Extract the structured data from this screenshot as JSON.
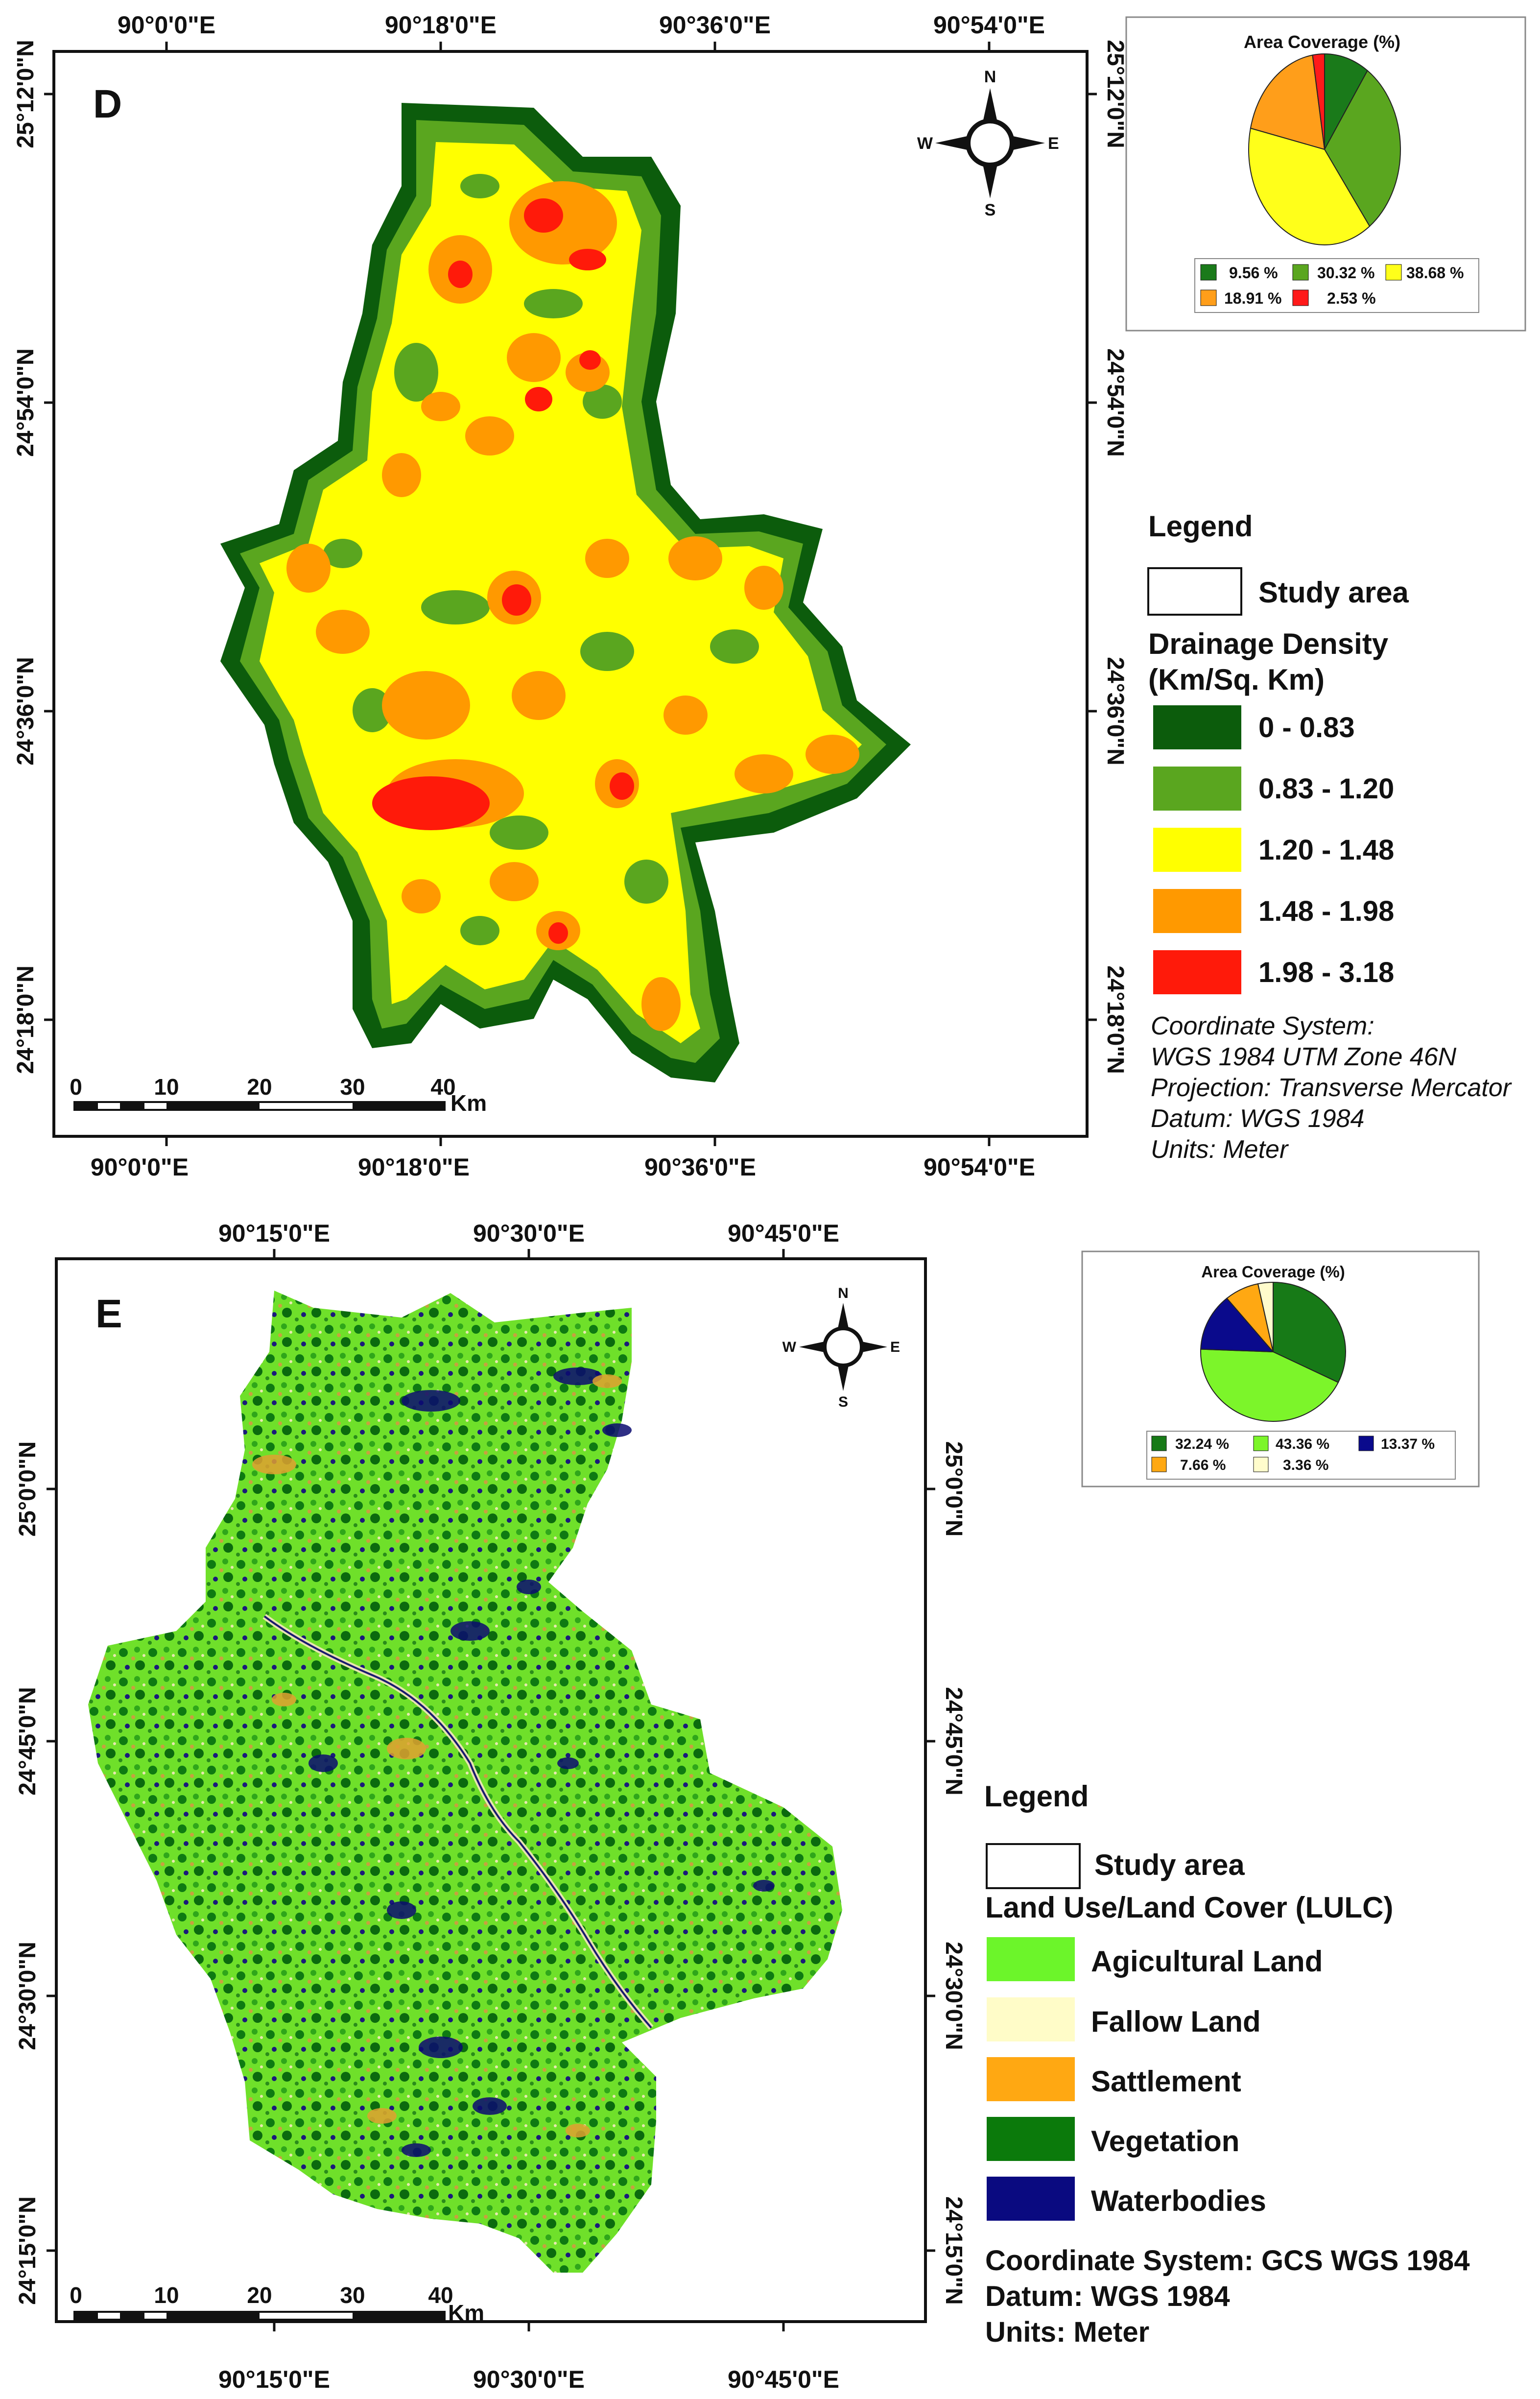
{
  "panel_d": {
    "label": "D",
    "top_ticks": [
      "90°0'0\"E",
      "90°18'0\"E",
      "90°36'0\"E",
      "90°54'0\"E"
    ],
    "bottom_ticks": [
      "90°0'0\"E",
      "90°18'0\"E",
      "90°36'0\"E",
      "90°54'0\"E"
    ],
    "left_ticks": [
      "25°12'0\"N",
      "24°54'0\"N",
      "24°36'0\"N",
      "24°18'0\"N"
    ],
    "right_ticks": [
      "25°12'0\"N",
      "24°54'0\"N",
      "24°36'0\"N",
      "24°18'0\"N"
    ],
    "north_arrow": {
      "n": "N",
      "s": "S",
      "e": "E",
      "w": "W"
    },
    "scale_bar": {
      "labels": [
        "0",
        "10",
        "20",
        "30",
        "40"
      ],
      "unit": "Km"
    },
    "pie": {
      "title": "Area Coverage (%)",
      "slices": [
        {
          "label": "9.56 %",
          "value": 9.56,
          "color": "#1a7a1a"
        },
        {
          "label": "30.32 %",
          "value": 30.32,
          "color": "#5aa61f"
        },
        {
          "label": "38.68 %",
          "value": 38.68,
          "color": "#ffff1a"
        },
        {
          "label": "18.91 %",
          "value": 18.91,
          "color": "#ff9e1a"
        },
        {
          "label": "2.53 %",
          "value": 2.53,
          "color": "#ff1a1a"
        }
      ]
    },
    "legend": {
      "title": "Legend",
      "study_area": "Study area",
      "heading_line1": "Drainage Density",
      "heading_line2": "(Km/Sq. Km)",
      "classes": [
        {
          "label": "0 - 0.83",
          "color": "#0c5c0c"
        },
        {
          "label": "0.83 - 1.20",
          "color": "#5aa61f"
        },
        {
          "label": "1.20 - 1.48",
          "color": "#ffff00"
        },
        {
          "label": "1.48 - 1.98",
          "color": "#ff9900"
        },
        {
          "label": "1.98 - 3.18",
          "color": "#ff1a0a"
        }
      ],
      "notes": [
        "Coordinate System:",
        "WGS 1984 UTM Zone 46N",
        "Projection: Transverse Mercator",
        "Datum: WGS 1984",
        "Units: Meter"
      ]
    }
  },
  "panel_e": {
    "label": "E",
    "top_ticks": [
      "90°15'0\"E",
      "90°30'0\"E",
      "90°45'0\"E"
    ],
    "bottom_ticks": [
      "90°15'0\"E",
      "90°30'0\"E",
      "90°45'0\"E"
    ],
    "left_ticks": [
      "25°0'0\"N",
      "24°45'0\"N",
      "24°30'0\"N",
      "24°15'0\"N"
    ],
    "right_ticks": [
      "25°0'0\"N",
      "24°45'0\"N",
      "24°30'0\"N",
      "24°15'0\"N"
    ],
    "north_arrow": {
      "n": "N",
      "s": "S",
      "e": "E",
      "w": "W"
    },
    "scale_bar": {
      "labels": [
        "0",
        "10",
        "20",
        "30",
        "40"
      ],
      "unit": "Km"
    },
    "pie": {
      "title": "Area Coverage (%)",
      "slices": [
        {
          "label": "32.24 %",
          "value": 32.24,
          "color": "#177a17"
        },
        {
          "label": "43.36 %",
          "value": 43.36,
          "color": "#7cf52a"
        },
        {
          "label": "13.37 %",
          "value": 13.37,
          "color": "#0a0a8c"
        },
        {
          "label": "7.66 %",
          "value": 7.66,
          "color": "#ffa812"
        },
        {
          "label": "3.36 %",
          "value": 3.36,
          "color": "#fffccc"
        }
      ]
    },
    "legend": {
      "title": "Legend",
      "study_area": "Study area",
      "heading": "Land Use/Land Cover (LULC)",
      "classes": [
        {
          "label": "Agicultural Land",
          "color": "#6cf52a"
        },
        {
          "label": "Fallow Land",
          "color": "#fffcc8"
        },
        {
          "label": "Sattlement",
          "color": "#ffa812"
        },
        {
          "label": "Vegetation",
          "color": "#0b7a0b"
        },
        {
          "label": "Waterbodies",
          "color": "#0a0a80"
        }
      ],
      "notes": [
        "Coordinate System: GCS WGS 1984",
        "Datum: WGS 1984",
        "Units: Meter"
      ]
    }
  }
}
